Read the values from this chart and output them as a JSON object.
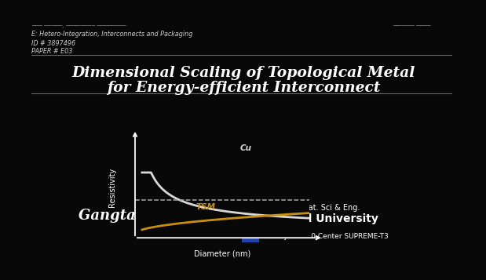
{
  "bg_color": "#080808",
  "title_line1": "Dimensional Scaling of Topological Metal",
  "title_line2": "for Energy-efficient Interconnect",
  "title_color": "#ffffff",
  "title_fontsize": 13.5,
  "header_line1": "E: Hetero-Integration, Interconnects and Packaging",
  "header_line2": "ID # 3897496",
  "header_line3": "PAPER # E03",
  "header_color": "#cccccc",
  "header_fontsize": 5.8,
  "blurred_left": "─── ─────, ──────── ────────",
  "blurred_right": "────── ────",
  "blurred_color": "#777777",
  "blurred_fontsize": 5.5,
  "author_name": "Gangtae Jin",
  "author_fontsize": 13,
  "author_color": "#ffffff",
  "cu_label": "Cu",
  "tsm_label": "TSM",
  "xlabel": "Diameter (nm)",
  "ylabel": "Resistivity",
  "cu_color": "#d8d8d8",
  "tsm_color": "#c8900a",
  "dashed_color": "#aaaaaa",
  "axis_color": "#ffffff",
  "label_color": "#ffffff",
  "xlabel_fontsize": 7,
  "ylabel_fontsize": 7,
  "cu_fontsize": 7.5,
  "tsm_fontsize": 7.5,
  "sep_line_color": "#666666",
  "cornell_dept": "Dept. of Mat. Sci & Eng.",
  "cornell_name": "Cornell University",
  "cornell_dept_fontsize": 7,
  "cornell_name_fontsize": 10,
  "src_text": "SRC JUMP 2.0 Center SUPREME-T3",
  "src_fontsize": 6.5,
  "inst_color": "#ffffff",
  "cornell_logo_color": "#7a1515",
  "src_logo_color": "#2244aa"
}
